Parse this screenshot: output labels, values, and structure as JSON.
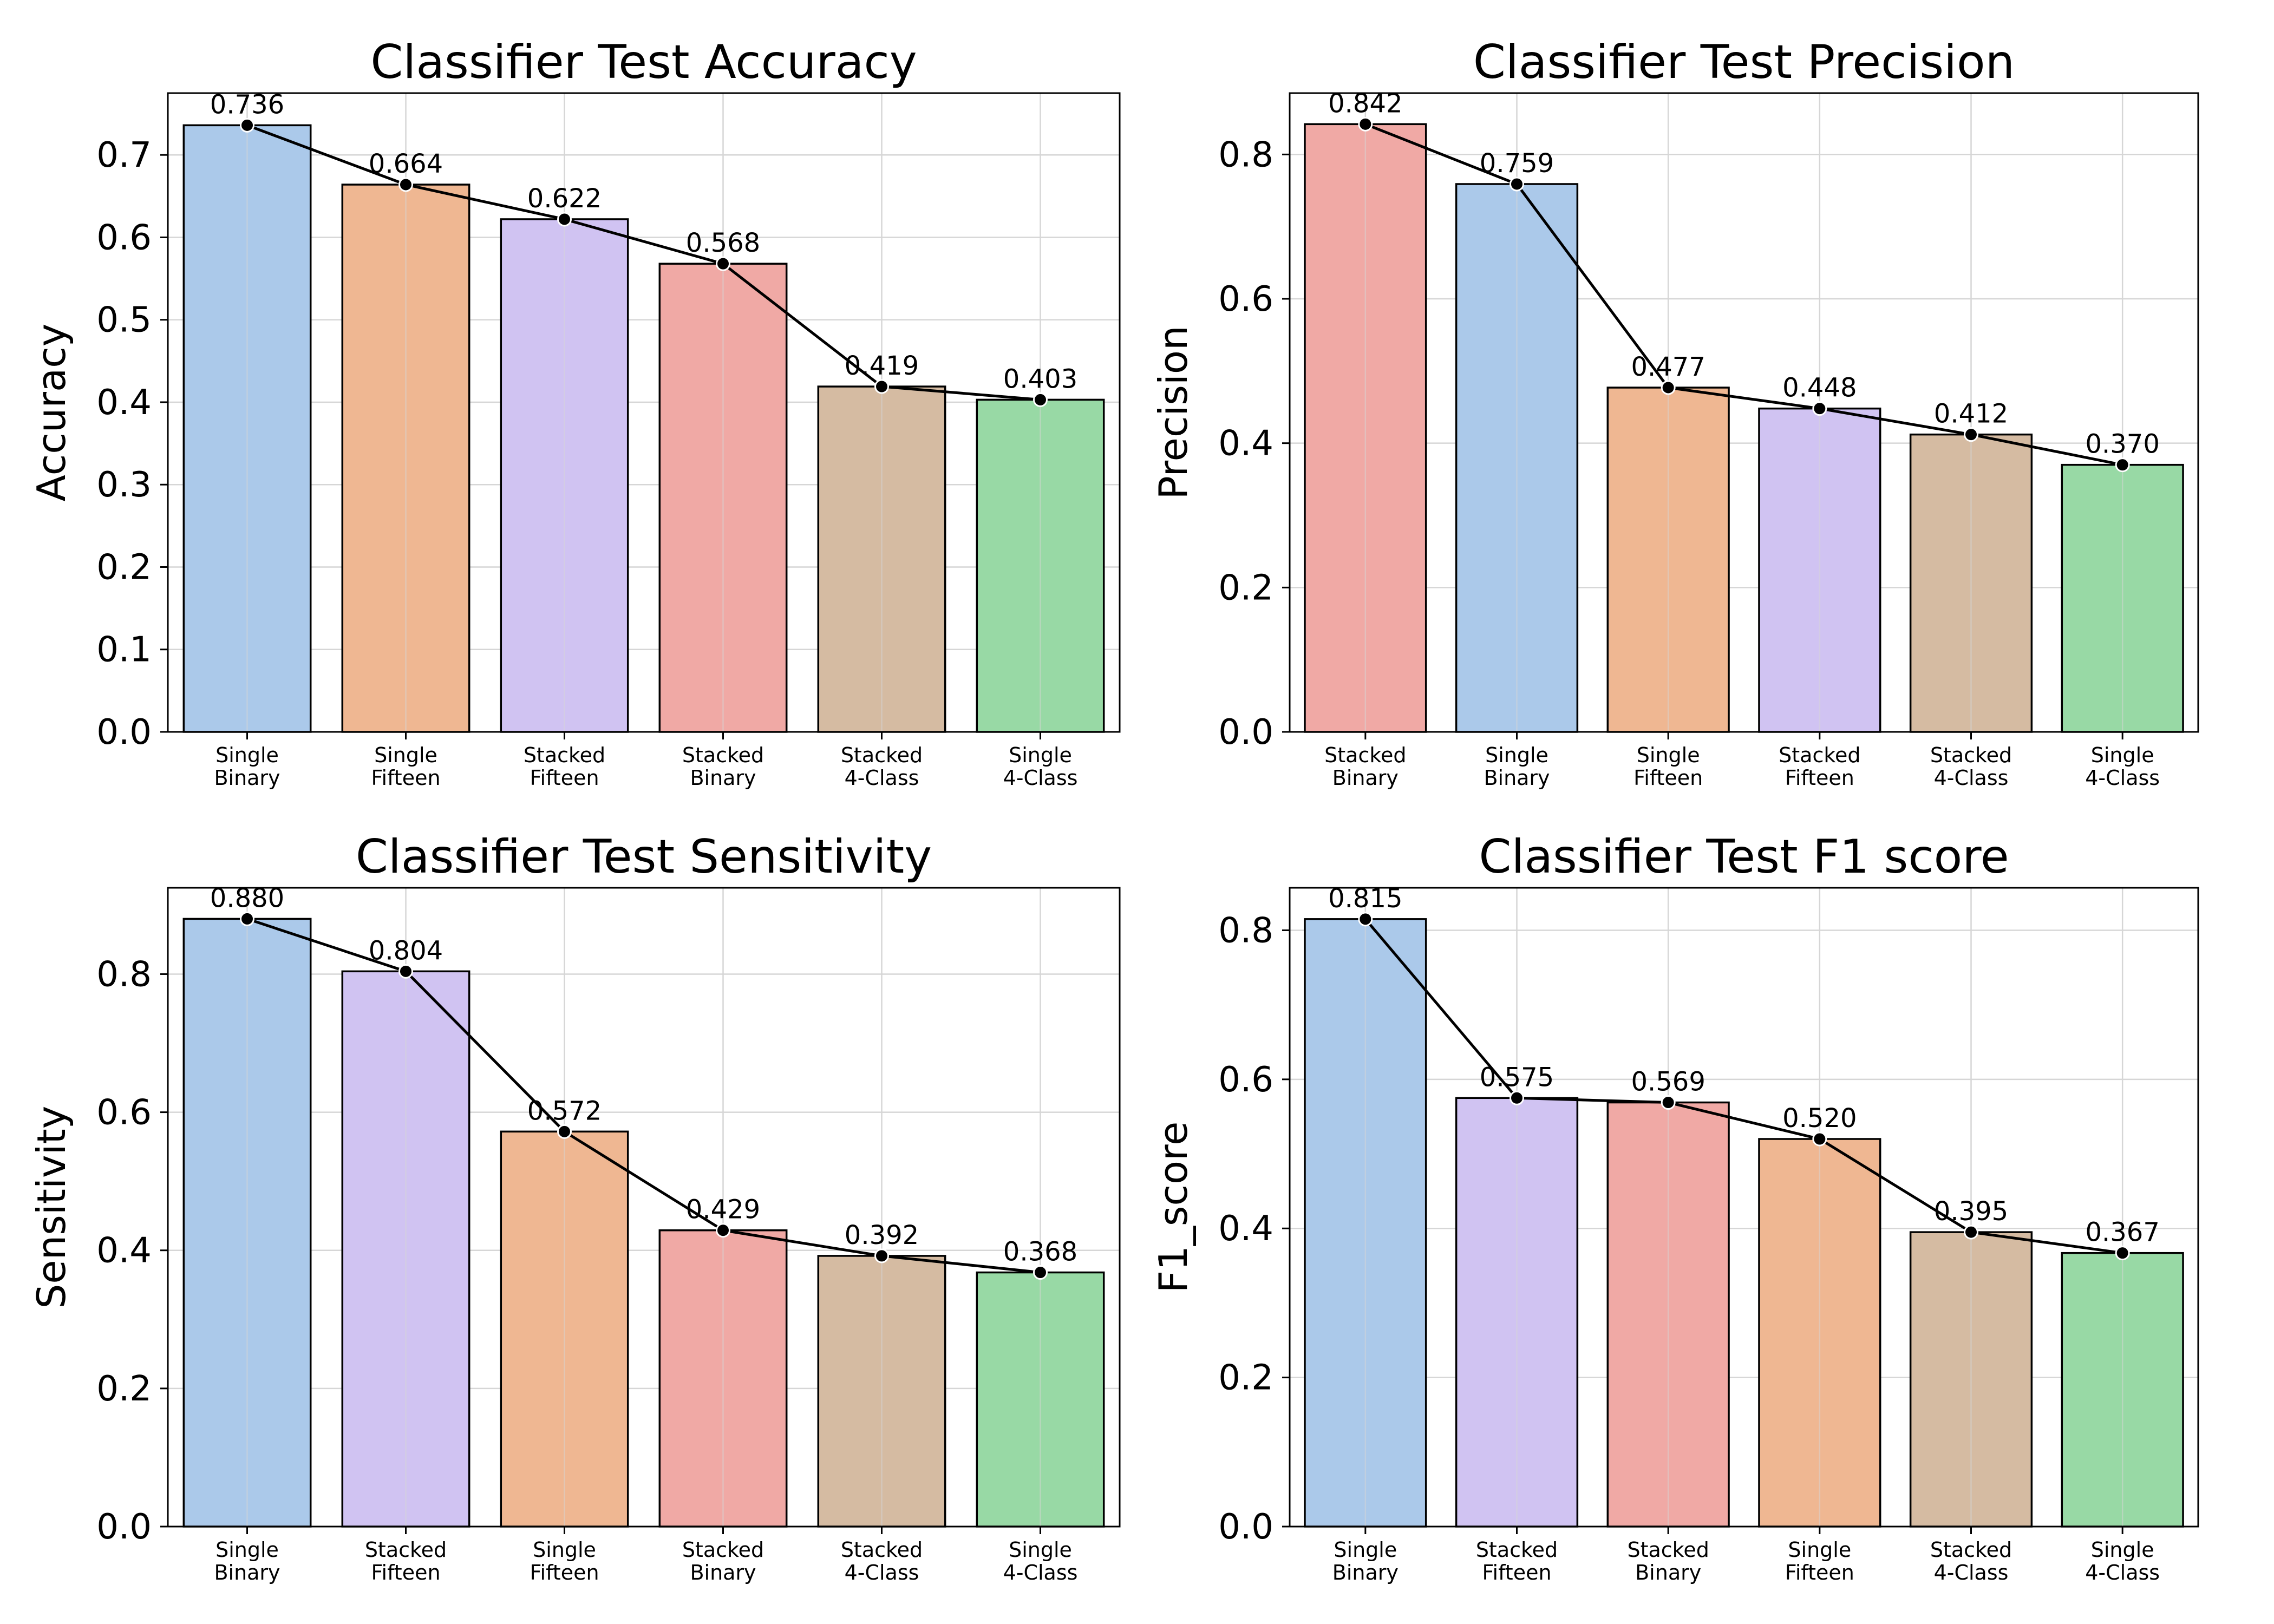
{
  "colors": {
    "Single Binary": "#abc9ea",
    "Single Fifteen": "#efb792",
    "Stacked Fifteen": "#d0c3f2",
    "Stacked Binary": "#f0a9a5",
    "Stacked 4-Class": "#d5bba2",
    "Single 4-Class": "#98d9a5"
  },
  "chart_data": [
    {
      "type": "bar",
      "title": "Classifier Test Accuracy",
      "ylabel": "Accuracy",
      "xlabel": "",
      "ylim": [
        0,
        0.775
      ],
      "yticks": [
        "0.0",
        "0.1",
        "0.2",
        "0.3",
        "0.4",
        "0.5",
        "0.6",
        "0.7"
      ],
      "grid": true,
      "trend_line": true,
      "categories": [
        [
          "Single",
          "Binary"
        ],
        [
          "Single",
          "Fifteen"
        ],
        [
          "Stacked",
          "Fifteen"
        ],
        [
          "Stacked",
          "Binary"
        ],
        [
          "Stacked",
          "4-Class"
        ],
        [
          "Single",
          "4-Class"
        ]
      ],
      "values": [
        0.736,
        0.664,
        0.622,
        0.568,
        0.419,
        0.403
      ],
      "labels": [
        "0.736",
        "0.664",
        "0.622",
        "0.568",
        "0.419",
        "0.403"
      ]
    },
    {
      "type": "bar",
      "title": "Classifier Test Precision",
      "ylabel": "Precision",
      "xlabel": "",
      "ylim": [
        0,
        0.885
      ],
      "yticks": [
        "0.0",
        "0.2",
        "0.4",
        "0.6",
        "0.8"
      ],
      "grid": true,
      "trend_line": true,
      "categories": [
        [
          "Stacked",
          "Binary"
        ],
        [
          "Single",
          "Binary"
        ],
        [
          "Single",
          "Fifteen"
        ],
        [
          "Stacked",
          "Fifteen"
        ],
        [
          "Stacked",
          "4-Class"
        ],
        [
          "Single",
          "4-Class"
        ]
      ],
      "values": [
        0.842,
        0.759,
        0.477,
        0.448,
        0.412,
        0.37
      ],
      "labels": [
        "0.842",
        "0.759",
        "0.477",
        "0.448",
        "0.412",
        "0.370"
      ]
    },
    {
      "type": "bar",
      "title": "Classifier Test Sensitivity",
      "ylabel": "Sensitivity",
      "xlabel": "",
      "ylim": [
        0,
        0.925
      ],
      "yticks": [
        "0.0",
        "0.2",
        "0.4",
        "0.6",
        "0.8"
      ],
      "grid": true,
      "trend_line": true,
      "categories": [
        [
          "Single",
          "Binary"
        ],
        [
          "Stacked",
          "Fifteen"
        ],
        [
          "Single",
          "Fifteen"
        ],
        [
          "Stacked",
          "Binary"
        ],
        [
          "Stacked",
          "4-Class"
        ],
        [
          "Single",
          "4-Class"
        ]
      ],
      "values": [
        0.88,
        0.804,
        0.572,
        0.429,
        0.392,
        0.368
      ],
      "labels": [
        "0.880",
        "0.804",
        "0.572",
        "0.429",
        "0.392",
        "0.368"
      ]
    },
    {
      "type": "bar",
      "title": "Classifier Test F1 score",
      "ylabel": "F1_score",
      "xlabel": "",
      "ylim": [
        0,
        0.857
      ],
      "yticks": [
        "0.0",
        "0.2",
        "0.4",
        "0.6",
        "0.8"
      ],
      "grid": true,
      "trend_line": true,
      "categories": [
        [
          "Single",
          "Binary"
        ],
        [
          "Stacked",
          "Fifteen"
        ],
        [
          "Stacked",
          "Binary"
        ],
        [
          "Single",
          "Fifteen"
        ],
        [
          "Stacked",
          "4-Class"
        ],
        [
          "Single",
          "4-Class"
        ]
      ],
      "values": [
        0.815,
        0.575,
        0.569,
        0.52,
        0.395,
        0.367
      ],
      "labels": [
        "0.815",
        "0.575",
        "0.569",
        "0.520",
        "0.395",
        "0.367"
      ]
    }
  ]
}
